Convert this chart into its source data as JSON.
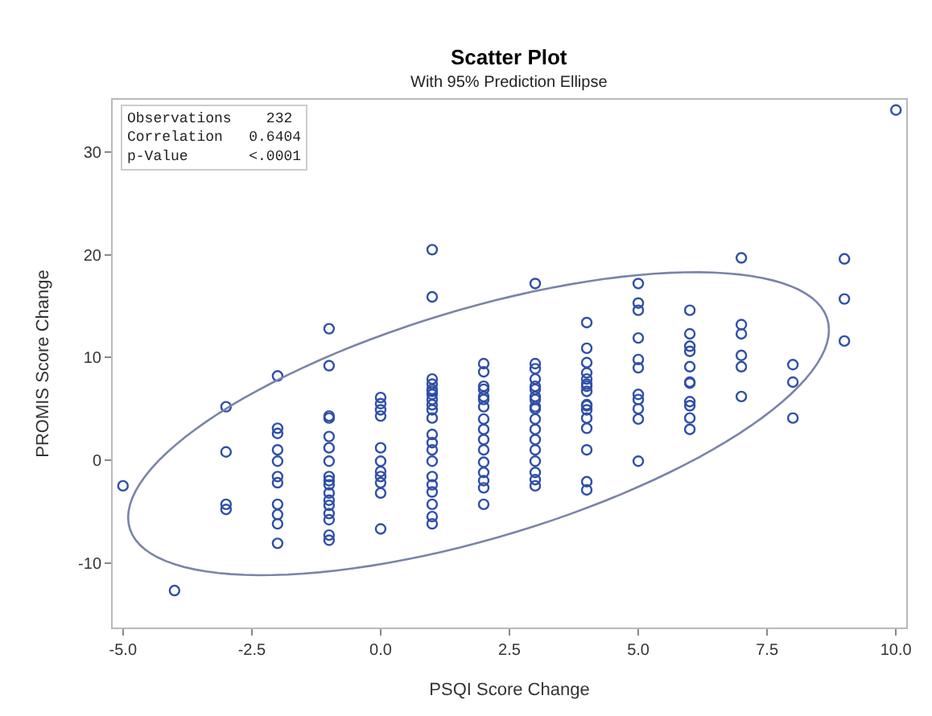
{
  "chart_data": {
    "type": "scatter",
    "title": "Scatter Plot",
    "subtitle": "With 95% Prediction Ellipse",
    "xlabel": "PSQI Score Change",
    "ylabel": "PROMIS Score Change",
    "annotations": [
      "Observations    232",
      "Correlation   0.6404",
      "p-Value       <.0001"
    ],
    "xlim": [
      -5.2,
      10.2
    ],
    "ylim": [
      -16.3,
      35.1
    ],
    "xticks": [
      {
        "value": -5,
        "label": "-5.0"
      },
      {
        "value": -2.5,
        "label": "-2.5"
      },
      {
        "value": 0,
        "label": "0.0"
      },
      {
        "value": 2.5,
        "label": "2.5"
      },
      {
        "value": 5,
        "label": "5.0"
      },
      {
        "value": 7.5,
        "label": "7.5"
      },
      {
        "value": 10,
        "label": "10.0"
      }
    ],
    "yticks": [
      -10,
      0,
      10,
      20,
      30
    ],
    "marker": "circle",
    "series": [
      {
        "color": "#2f4fa8",
        "x": [
          -5,
          -4,
          -3,
          -3,
          -3,
          -3,
          -2,
          -2,
          -2,
          -2,
          -2,
          -2,
          -2,
          -2,
          -2,
          -2,
          -2,
          -1,
          -1,
          -1,
          -1,
          -1,
          -1,
          -1,
          -1,
          -1,
          -1,
          -1,
          -1,
          -1,
          -1,
          -1,
          -1,
          -1,
          0,
          0,
          0,
          0,
          0,
          0,
          0,
          0,
          0,
          0,
          0,
          1,
          1,
          1,
          1,
          1,
          1,
          1,
          1,
          1,
          1,
          1,
          1,
          1,
          1,
          1,
          1,
          1,
          1,
          1,
          1,
          1,
          2,
          2,
          2,
          2,
          2,
          2,
          2,
          2,
          2,
          2,
          2,
          2,
          2,
          2,
          2,
          2,
          3,
          3,
          3,
          3,
          3,
          3,
          3,
          3,
          3,
          3,
          3,
          3,
          3,
          3,
          3,
          3,
          3,
          3,
          4,
          4,
          4,
          4,
          4,
          4,
          4,
          4,
          4,
          4,
          4,
          4,
          4,
          4,
          4,
          4,
          5,
          5,
          5,
          5,
          5,
          5,
          5,
          5,
          5,
          5,
          5,
          6,
          6,
          6,
          6,
          6,
          6,
          6,
          6,
          6,
          6,
          6,
          7,
          7,
          7,
          7,
          7,
          7,
          8,
          8,
          8,
          9,
          9,
          9,
          10
        ],
        "values": [
          -2.5,
          -12.7,
          5.2,
          0.8,
          -4.3,
          -4.8,
          8.2,
          3.1,
          2.6,
          1.0,
          -0.1,
          -1.6,
          -2.2,
          -4.3,
          -5.3,
          -6.2,
          -8.1,
          12.8,
          9.2,
          4.3,
          4.1,
          2.3,
          1.2,
          -0.1,
          -1.6,
          -2.0,
          -2.4,
          -3.2,
          -3.9,
          -4.4,
          -5.2,
          -5.8,
          -7.3,
          -7.8,
          6.1,
          5.5,
          4.9,
          4.3,
          1.2,
          -0.1,
          -1.1,
          -1.6,
          -2.2,
          -3.2,
          -6.7,
          20.5,
          15.9,
          7.9,
          7.4,
          6.9,
          6.4,
          5.4,
          4.9,
          6.7,
          5.9,
          4.1,
          2.5,
          1.7,
          1.0,
          -0.1,
          -1.6,
          -2.4,
          -3.1,
          -4.3,
          -5.5,
          -6.2,
          9.4,
          8.6,
          6.9,
          5.9,
          5.2,
          7.2,
          6.2,
          4.0,
          3.0,
          2.0,
          1.0,
          -0.2,
          -1.2,
          -2.0,
          -2.7,
          -4.3,
          17.2,
          9.4,
          8.9,
          7.9,
          7.2,
          6.2,
          5.2,
          6.9,
          5.9,
          5.0,
          4.0,
          3.0,
          2.0,
          1.0,
          -0.1,
          -1.2,
          -1.9,
          -2.5,
          13.4,
          10.9,
          9.5,
          8.5,
          7.9,
          7.4,
          6.7,
          5.4,
          7.2,
          5.3,
          4.9,
          4.1,
          3.1,
          1.0,
          -2.1,
          -2.9,
          17.2,
          15.3,
          14.6,
          11.9,
          9.8,
          9.0,
          6.4,
          5.9,
          5.0,
          4.0,
          -0.1,
          14.6,
          12.3,
          11.1,
          10.6,
          9.1,
          7.6,
          5.7,
          7.5,
          5.3,
          4.1,
          3.0,
          19.7,
          13.2,
          12.3,
          10.2,
          9.1,
          6.2,
          9.3,
          7.6,
          4.1,
          19.6,
          15.7,
          11.6,
          34.1
        ]
      }
    ]
  }
}
